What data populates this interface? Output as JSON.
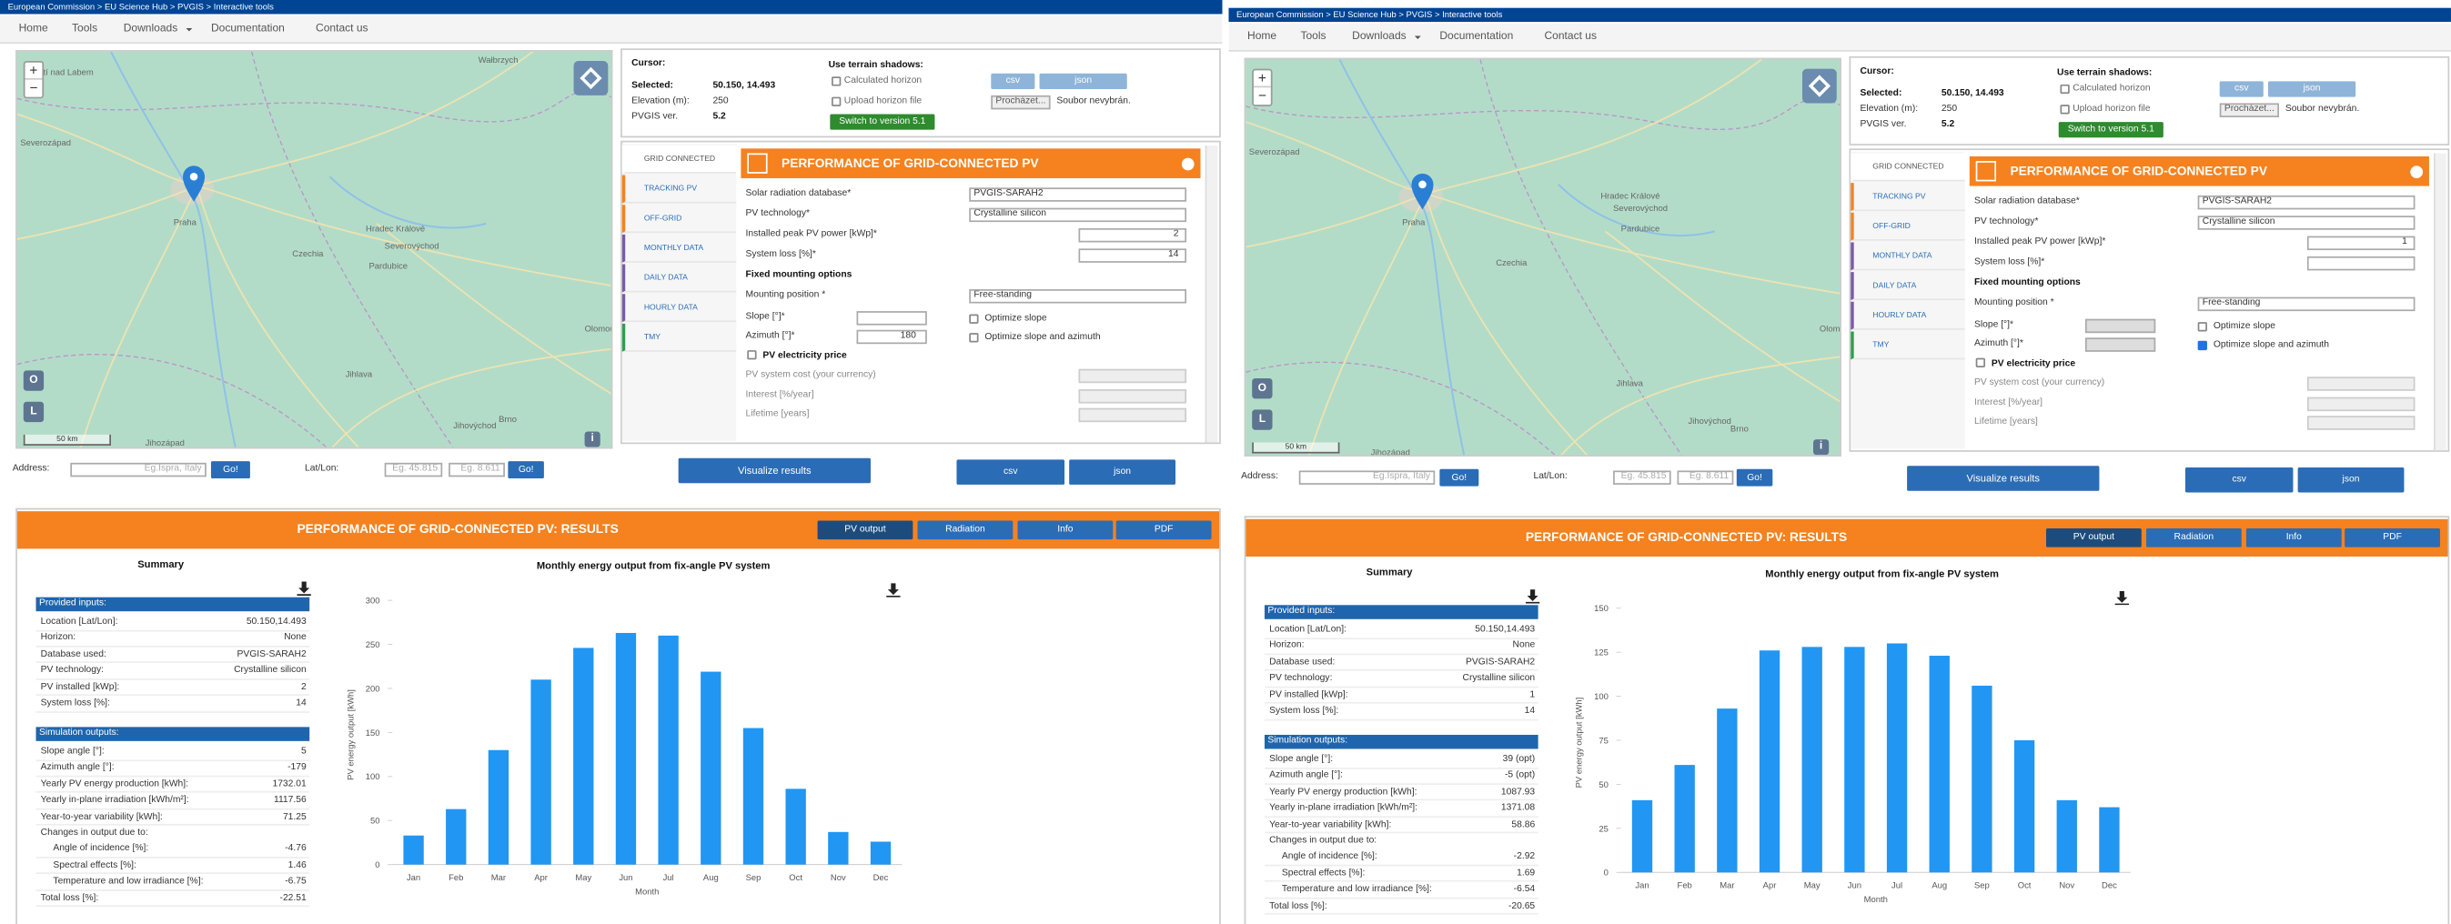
{
  "panels": [
    {
      "breadcrumb": "European Commission > EU Science Hub > PVGIS > Interactive tools",
      "nav": [
        "Home",
        "Tools",
        "Downloads",
        "Documentation",
        "Contact us"
      ],
      "map": {
        "labels": [
          "Wałbrzych",
          "Ústí nad Labem",
          "Severozápad",
          "Hradec Králové",
          "Severovýchod",
          "Pardubice",
          "Praha",
          "Czechia",
          "Olomouc",
          "Jihlava",
          "Brno",
          "Jihovýchod",
          "Jihozápad"
        ],
        "scale": "50 km",
        "zoom_in": "+",
        "zoom_out": "−",
        "buttons": [
          "O",
          "L"
        ],
        "info": "i"
      },
      "address": {
        "label": "Address:",
        "placeholder": "Eg.Ispra, Italy",
        "go": "Go!",
        "latlon_label": "Lat/Lon:",
        "lat_placeholder": "Eg. 45.815",
        "lon_placeholder": "Eg. 8.611",
        "go_latlon": "Go!"
      },
      "cursor": {
        "cursor_label": "Cursor:",
        "selected_label": "Selected:",
        "selected": "50.150, 14.493",
        "elevation_label": "Elevation (m):",
        "elevation": 250,
        "version_label": "PVGIS ver.",
        "version": "5.2"
      },
      "shadows": {
        "title": "Use terrain shadows:",
        "calculated": "Calculated horizon",
        "upload": "Upload horizon file",
        "csv": "csv",
        "json": "json",
        "browse": "Procházet...",
        "no_file": "Soubor nevybrán.",
        "switch": "Switch to version 5.1"
      },
      "form": {
        "tabs": [
          "GRID CONNECTED",
          "TRACKING PV",
          "OFF-GRID",
          "MONTHLY DATA",
          "DAILY DATA",
          "HOURLY DATA",
          "TMY"
        ],
        "header": "PERFORMANCE OF GRID-CONNECTED PV",
        "fields": [
          {
            "label": "Solar radiation database*",
            "value": "PVGIS-SARAH2"
          },
          {
            "label": "PV technology*",
            "value": "Crystalline silicon"
          },
          {
            "label": "Installed peak PV power [kWp]*",
            "value": 2
          },
          {
            "label": "System loss [%]*",
            "value": 14
          }
        ],
        "fixed_title": "Fixed mounting options",
        "mounting": {
          "label": "Mounting position *",
          "value": "Free-standing"
        },
        "slope": {
          "label": "Slope [°]*"
        },
        "azimuth": {
          "label": "Azimuth [°]*",
          "value": 180
        },
        "optimize_slope": {
          "label": "Optimize slope",
          "checked": false
        },
        "optimize_both": {
          "label": "Optimize slope and azimuth",
          "checked": false
        },
        "price": "PV electricity price",
        "price_fields": [
          "PV system cost (your currency)",
          "Interest [%/year]",
          "Lifetime [years]"
        ]
      },
      "actions": {
        "visualize": "Visualize results",
        "csv": "csv",
        "json": "json"
      },
      "results": {
        "header": "PERFORMANCE OF GRID-CONNECTED PV: RESULTS",
        "tabs": [
          "PV output",
          "Radiation",
          "Info",
          "PDF"
        ],
        "summary": {
          "title": "Summary",
          "provided_header": "Provided inputs:",
          "provided": [
            [
              "Location [Lat/Lon]:",
              "50.150,14.493"
            ],
            [
              "Horizon:",
              "None"
            ],
            [
              "Database used:",
              "PVGIS-SARAH2"
            ],
            [
              "PV technology:",
              "Crystalline silicon"
            ],
            [
              "PV installed [kWp]:",
              2
            ],
            [
              "System loss [%]:",
              14
            ]
          ],
          "outputs_header": "Simulation outputs:",
          "outputs": [
            [
              "Slope angle [°]:",
              5
            ],
            [
              "Azimuth angle [°]:",
              -179
            ],
            [
              "Yearly PV energy production [kWh]:",
              1732.01
            ],
            [
              "Yearly in-plane irradiation [kWh/m²]:",
              1117.56
            ],
            [
              "Year-to-year variability [kWh]:",
              71.25
            ]
          ],
          "changes": {
            "label": "Changes in output due to:",
            "rows": [
              [
                "Angle of incidence [%]:",
                -4.76
              ],
              [
                "Spectral effects [%]:",
                1.46
              ],
              [
                "Temperature and low irradiance [%]:",
                -6.75
              ]
            ]
          },
          "total": [
            "Total loss [%]:",
            -22.51
          ]
        },
        "chart": {
          "type": "bar",
          "title": "Monthly energy output from fix-angle PV system",
          "y_label": "PV energy output [kWh]",
          "x_label": "Month",
          "categories": [
            "Jan",
            "Feb",
            "Mar",
            "Apr",
            "May",
            "Jun",
            "Jul",
            "Aug",
            "Sep",
            "Oct",
            "Nov",
            "Dec"
          ],
          "values": [
            33,
            63,
            130,
            210,
            246,
            263,
            260,
            219,
            155,
            86,
            37,
            26
          ],
          "color": "#2196f3",
          "ylim": [
            0,
            300
          ],
          "yticks": [
            0,
            50,
            100,
            150,
            200,
            250,
            300
          ]
        }
      }
    },
    {
      "breadcrumb": "European Commission > EU Science Hub > PVGIS > Interactive tools",
      "nav": [
        "Home",
        "Tools",
        "Downloads",
        "Documentation",
        "Contact us"
      ],
      "map": {
        "labels": [
          "Severozápad",
          "Hradec Králové",
          "Severovýchod",
          "Pardubice",
          "Praha",
          "Czechia",
          "Olomouc",
          "Jihlava",
          "Brno",
          "Jihovýchod",
          "Jihozápad"
        ],
        "scale": "50 km",
        "zoom_in": "+",
        "zoom_out": "−",
        "buttons": [
          "O",
          "L"
        ],
        "info": "i"
      },
      "address": {
        "label": "Address:",
        "placeholder": "Eg.Ispra, Italy",
        "go": "Go!",
        "latlon_label": "Lat/Lon:",
        "lat_placeholder": "Eg. 45.815",
        "lon_placeholder": "Eg. 8.611",
        "go_latlon": "Go!"
      },
      "cursor": {
        "cursor_label": "Cursor:",
        "selected_label": "Selected:",
        "selected": "50.150, 14.493",
        "elevation_label": "Elevation (m):",
        "elevation": 250,
        "version_label": "PVGIS ver.",
        "version": "5.2"
      },
      "shadows": {
        "title": "Use terrain shadows:",
        "calculated": "Calculated horizon",
        "upload": "Upload horizon file",
        "csv": "csv",
        "json": "json",
        "browse": "Procházet...",
        "no_file": "Soubor nevybrán.",
        "switch": "Switch to version 5.1"
      },
      "form": {
        "tabs": [
          "GRID CONNECTED",
          "TRACKING PV",
          "OFF-GRID",
          "MONTHLY DATA",
          "DAILY DATA",
          "HOURLY DATA",
          "TMY"
        ],
        "header": "PERFORMANCE OF GRID-CONNECTED PV",
        "fields": [
          {
            "label": "Solar radiation database*",
            "value": "PVGIS-SARAH2"
          },
          {
            "label": "PV technology*",
            "value": "Crystalline silicon"
          },
          {
            "label": "Installed peak PV power [kWp]*",
            "value": 1
          },
          {
            "label": "System loss [%]*"
          }
        ],
        "fixed_title": "Fixed mounting options",
        "mounting": {
          "label": "Mounting position *",
          "value": "Free-standing"
        },
        "slope": {
          "label": "Slope [°]*"
        },
        "azimuth": {
          "label": "Azimuth [°]*"
        },
        "optimize_slope": {
          "label": "Optimize slope",
          "checked": false
        },
        "optimize_both": {
          "label": "Optimize slope and azimuth",
          "checked": true
        },
        "price": "PV electricity price",
        "price_fields": [
          "PV system cost (your currency)",
          "Interest [%/year]",
          "Lifetime [years]"
        ]
      },
      "actions": {
        "visualize": "Visualize results",
        "csv": "csv",
        "json": "json"
      },
      "results": {
        "header": "PERFORMANCE OF GRID-CONNECTED PV: RESULTS",
        "tabs": [
          "PV output",
          "Radiation",
          "Info",
          "PDF"
        ],
        "summary": {
          "title": "Summary",
          "provided_header": "Provided inputs:",
          "provided": [
            [
              "Location [Lat/Lon]:",
              "50.150,14.493"
            ],
            [
              "Horizon:",
              "None"
            ],
            [
              "Database used:",
              "PVGIS-SARAH2"
            ],
            [
              "PV technology:",
              "Crystalline silicon"
            ],
            [
              "PV installed [kWp]:",
              1
            ],
            [
              "System loss [%]:",
              14
            ]
          ],
          "outputs_header": "Simulation outputs:",
          "outputs": [
            [
              "Slope angle [°]:",
              "39 (opt)"
            ],
            [
              "Azimuth angle [°]:",
              "-5 (opt)"
            ],
            [
              "Yearly PV energy production [kWh]:",
              1087.93
            ],
            [
              "Yearly in-plane irradiation [kWh/m²]:",
              1371.08
            ],
            [
              "Year-to-year variability [kWh]:",
              58.86
            ]
          ],
          "changes": {
            "label": "Changes in output due to:",
            "rows": [
              [
                "Angle of incidence [%]:",
                -2.92
              ],
              [
                "Spectral effects [%]:",
                1.69
              ],
              [
                "Temperature and low irradiance [%]:",
                -6.54
              ]
            ]
          },
          "total": [
            "Total loss [%]:",
            -20.65
          ]
        },
        "chart": {
          "type": "bar",
          "title": "Monthly energy output from fix-angle PV system",
          "y_label": "PV energy output [kWh]",
          "x_label": "Month",
          "categories": [
            "Jan",
            "Feb",
            "Mar",
            "Apr",
            "May",
            "Jun",
            "Jul",
            "Aug",
            "Sep",
            "Oct",
            "Nov",
            "Dec"
          ],
          "values": [
            41,
            61,
            93,
            126,
            128,
            128,
            130,
            123,
            106,
            75,
            41,
            37
          ],
          "color": "#2196f3",
          "ylim": [
            0,
            150
          ],
          "yticks": [
            0,
            25,
            50,
            75,
            100,
            125,
            150
          ]
        }
      }
    }
  ]
}
